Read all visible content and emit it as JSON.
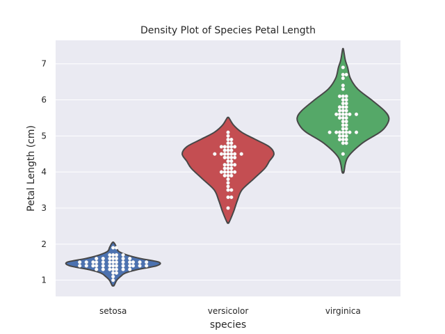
{
  "chart_data": {
    "type": "violin",
    "title": "Density Plot of Species Petal Length",
    "xlabel": "species",
    "ylabel": "Petal Length (cm)",
    "ylim": [
      0.55,
      7.65
    ],
    "yticks": [
      1,
      2,
      3,
      4,
      5,
      6,
      7
    ],
    "grid": true,
    "categories": [
      "setosa",
      "versicolor",
      "virginica"
    ],
    "colors": {
      "setosa": "#4c72b0",
      "versicolor": "#c44e52",
      "virginica": "#55a868",
      "background": "#eaeaf2",
      "grid": "#ffffff",
      "outline": "#474747",
      "points": "#ffffff"
    },
    "series": [
      {
        "name": "setosa",
        "range": [
          0.85,
          2.05
        ],
        "density": [
          [
            0.85,
            0.02
          ],
          [
            1.0,
            0.08
          ],
          [
            1.1,
            0.16
          ],
          [
            1.2,
            0.27
          ],
          [
            1.3,
            0.55
          ],
          [
            1.4,
            0.95
          ],
          [
            1.5,
            1.0
          ],
          [
            1.6,
            0.6
          ],
          [
            1.7,
            0.3
          ],
          [
            1.8,
            0.12
          ],
          [
            1.9,
            0.08
          ],
          [
            2.0,
            0.04
          ],
          [
            2.05,
            0.01
          ]
        ],
        "values": [
          1.4,
          1.4,
          1.3,
          1.5,
          1.4,
          1.7,
          1.4,
          1.5,
          1.4,
          1.5,
          1.5,
          1.6,
          1.4,
          1.1,
          1.2,
          1.5,
          1.3,
          1.4,
          1.7,
          1.5,
          1.7,
          1.5,
          1.0,
          1.7,
          1.9,
          1.6,
          1.6,
          1.5,
          1.4,
          1.6,
          1.6,
          1.5,
          1.5,
          1.4,
          1.5,
          1.2,
          1.3,
          1.4,
          1.3,
          1.5,
          1.3,
          1.3,
          1.3,
          1.6,
          1.9,
          1.4,
          1.6,
          1.4,
          1.5,
          1.4
        ]
      },
      {
        "name": "versicolor",
        "range": [
          2.6,
          5.5
        ],
        "density": [
          [
            2.6,
            0.02
          ],
          [
            2.9,
            0.12
          ],
          [
            3.2,
            0.2
          ],
          [
            3.5,
            0.3
          ],
          [
            3.8,
            0.55
          ],
          [
            4.1,
            0.8
          ],
          [
            4.3,
            0.9
          ],
          [
            4.5,
            1.0
          ],
          [
            4.7,
            0.9
          ],
          [
            4.9,
            0.6
          ],
          [
            5.1,
            0.3
          ],
          [
            5.3,
            0.12
          ],
          [
            5.5,
            0.02
          ]
        ],
        "values": [
          4.7,
          4.5,
          4.9,
          4.0,
          4.6,
          4.5,
          4.7,
          3.3,
          4.6,
          3.9,
          3.5,
          4.2,
          4.0,
          4.7,
          3.6,
          4.4,
          4.5,
          4.1,
          4.5,
          3.9,
          4.8,
          4.0,
          4.9,
          4.7,
          4.3,
          4.4,
          4.8,
          5.0,
          4.5,
          3.5,
          3.8,
          3.7,
          3.9,
          5.1,
          4.5,
          4.5,
          4.7,
          4.4,
          4.1,
          4.0,
          4.4,
          4.6,
          4.0,
          3.3,
          4.2,
          4.2,
          4.2,
          4.3,
          3.0,
          4.1
        ]
      },
      {
        "name": "virginica",
        "range": [
          4.0,
          7.4
        ],
        "density": [
          [
            4.0,
            0.02
          ],
          [
            4.4,
            0.1
          ],
          [
            4.8,
            0.42
          ],
          [
            5.1,
            0.8
          ],
          [
            5.3,
            0.95
          ],
          [
            5.5,
            1.0
          ],
          [
            5.7,
            0.9
          ],
          [
            6.0,
            0.62
          ],
          [
            6.3,
            0.32
          ],
          [
            6.6,
            0.16
          ],
          [
            6.9,
            0.1
          ],
          [
            7.1,
            0.05
          ],
          [
            7.4,
            0.01
          ]
        ],
        "values": [
          6.0,
          5.1,
          5.9,
          5.6,
          5.8,
          6.6,
          4.5,
          6.3,
          5.8,
          6.1,
          5.1,
          5.3,
          5.5,
          5.0,
          5.1,
          5.3,
          5.5,
          6.7,
          6.9,
          5.0,
          5.7,
          4.9,
          6.7,
          4.9,
          5.7,
          6.0,
          4.8,
          4.9,
          5.6,
          5.8,
          6.1,
          6.4,
          5.6,
          5.1,
          5.6,
          6.1,
          5.6,
          5.5,
          4.8,
          5.4,
          5.6,
          5.1,
          5.1,
          5.9,
          5.7,
          5.2,
          5.0,
          5.2,
          5.4,
          5.1
        ]
      }
    ]
  }
}
